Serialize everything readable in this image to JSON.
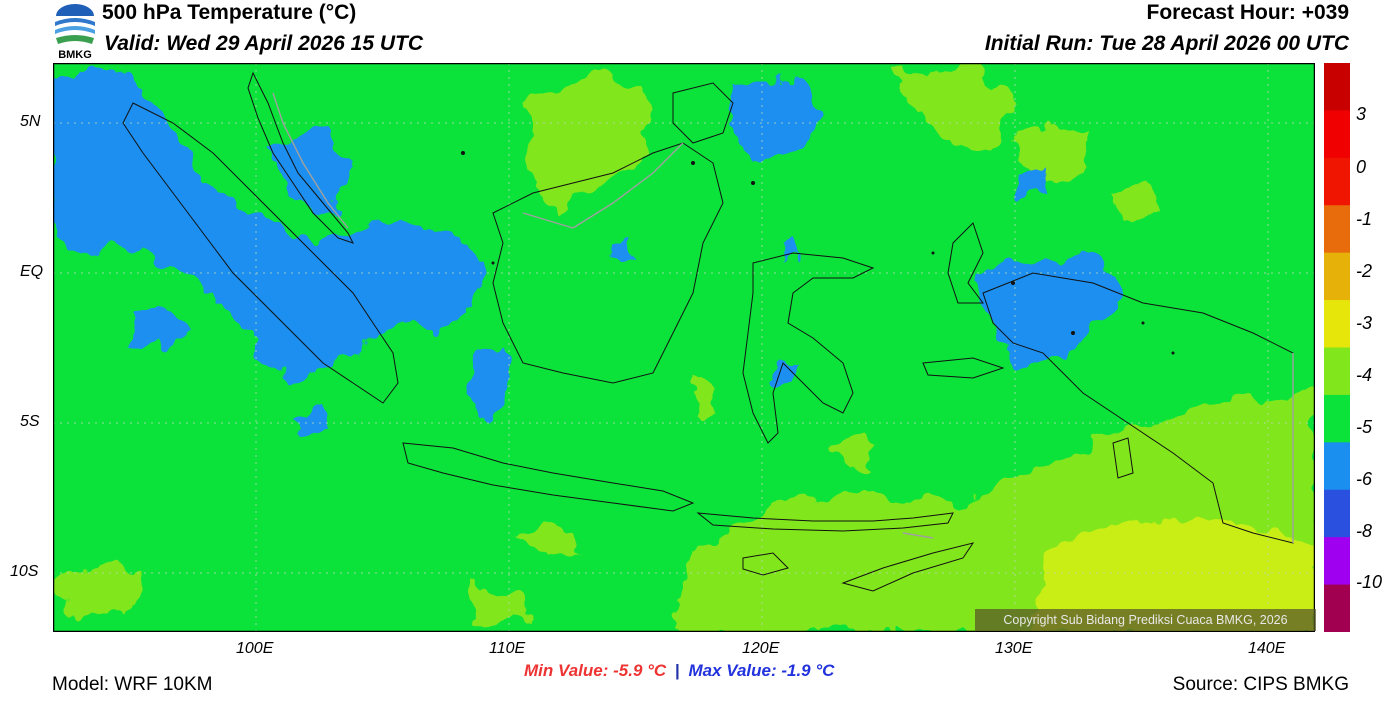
{
  "header": {
    "logo_text": "BMKG",
    "title": "500 hPa Temperature (°C)",
    "valid": "Valid: Wed 29 April 2026 15 UTC",
    "forecast_hour": "Forecast Hour: +039",
    "initial_run": "Initial Run: Tue 28 April 2026 00 UTC"
  },
  "map": {
    "lat_labels": [
      "5N",
      "EQ",
      "5S",
      "10S"
    ],
    "lon_labels": [
      "100E",
      "110E",
      "120E",
      "130E",
      "140E"
    ],
    "copyright": "Copyright Sub Bidang Prediksi Cuaca BMKG, 2026",
    "colors": {
      "base": "#0be33a",
      "warm": "#82e61c",
      "warmer": "#c9ee14",
      "cool": "#1a8ff0",
      "coast": "#111111",
      "border": "#a0a0a0"
    }
  },
  "colorbar": {
    "labels": [
      "3",
      "0",
      "-1",
      "-2",
      "-3",
      "-4",
      "-5",
      "-6",
      "-8",
      "-10"
    ],
    "colors": [
      "#c80000",
      "#f00000",
      "#f01500",
      "#e86c0c",
      "#e6b20a",
      "#e6e60a",
      "#82e61c",
      "#0be33a",
      "#1a8ff0",
      "#2a50e0",
      "#a000f0",
      "#a0004f"
    ]
  },
  "footer": {
    "model": "Model: WRF 10KM",
    "min_value": "Min Value: -5.9 °C",
    "separator": "|",
    "max_value": "Max Value: -1.9 °C",
    "source": "Source: CIPS BMKG"
  }
}
